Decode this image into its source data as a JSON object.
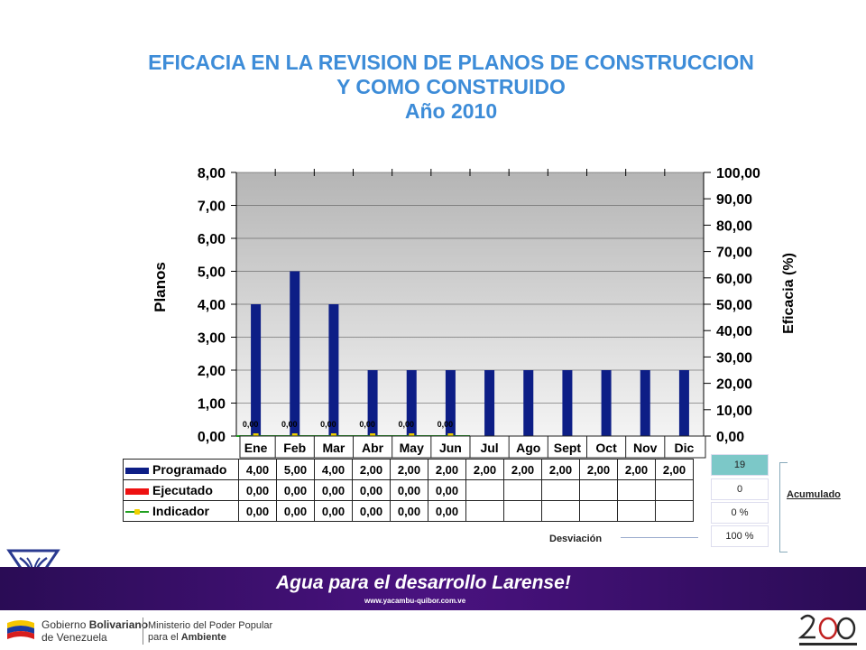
{
  "title": {
    "line1": "EFICACIA EN LA REVISION DE PLANOS DE CONSTRUCCION",
    "line2": "Y COMO CONSTRUIDO",
    "line3": "Año 2010"
  },
  "chart_data": {
    "type": "bar",
    "categories": [
      "Ene",
      "Feb",
      "Mar",
      "Abr",
      "May",
      "Jun",
      "Jul",
      "Ago",
      "Sept",
      "Oct",
      "Nov",
      "Dic"
    ],
    "series": [
      {
        "name": "Programado",
        "values": [
          4,
          5,
          4,
          2,
          2,
          2,
          2,
          2,
          2,
          2,
          2,
          2
        ],
        "color": "#0d1e86",
        "axis": "left"
      },
      {
        "name": "Ejecutado",
        "values": [
          0,
          0,
          0,
          0,
          0,
          0,
          null,
          null,
          null,
          null,
          null,
          null
        ],
        "color": "#ee1111",
        "axis": "left"
      },
      {
        "name": "Indicador",
        "values": [
          0,
          0,
          0,
          0,
          0,
          0,
          null,
          null,
          null,
          null,
          null,
          null
        ],
        "color": "#20a020",
        "axis": "right"
      }
    ],
    "bar_labels": [
      "0,00",
      "0,00",
      "0,00",
      "0,00",
      "0,00",
      "0,00"
    ],
    "ylabel": "Planos",
    "ylabel_right": "Eficacia (%)",
    "ylim": [
      0,
      8
    ],
    "yticks": [
      "0,00",
      "1,00",
      "2,00",
      "3,00",
      "4,00",
      "5,00",
      "6,00",
      "7,00",
      "8,00"
    ],
    "ylim_right": [
      0,
      100
    ],
    "yticks_right": [
      "0,00",
      "10,00",
      "20,00",
      "30,00",
      "40,00",
      "50,00",
      "60,00",
      "70,00",
      "80,00",
      "90,00",
      "100,00"
    ],
    "grid": true
  },
  "table": {
    "rows": [
      {
        "label": "Programado",
        "values": [
          "4,00",
          "5,00",
          "4,00",
          "2,00",
          "2,00",
          "2,00",
          "2,00",
          "2,00",
          "2,00",
          "2,00",
          "2,00",
          "2,00"
        ]
      },
      {
        "label": "Ejecutado",
        "values": [
          "0,00",
          "0,00",
          "0,00",
          "0,00",
          "0,00",
          "0,00",
          "",
          "",
          "",
          "",
          "",
          ""
        ]
      },
      {
        "label": "Indicador",
        "values": [
          "0,00",
          "0,00",
          "0,00",
          "0,00",
          "0,00",
          "0,00",
          "",
          "",
          "",
          "",
          "",
          ""
        ]
      }
    ]
  },
  "accumulated": {
    "values": [
      "19",
      "0",
      "0 %",
      "100  %"
    ],
    "label": "Acumulado",
    "deviation_label": "Desviación"
  },
  "banner": {
    "slogan": "Agua para el desarrollo Larense!",
    "website": "www.yacambu-quibor.com.ve"
  },
  "footer": {
    "gob_line1_a": "Gobierno ",
    "gob_line1_b": "Bolivariano",
    "gob_line2": "de Venezuela",
    "min_line1": "Ministerio del Poder Popular",
    "min_line2_a": "para el ",
    "min_line2_b": "Ambiente"
  },
  "colors": {
    "title": "#3d8cd8",
    "programado": "#0d1e86",
    "ejecutado": "#ee1111",
    "indicador": "#20a020",
    "banner": "#3a1070"
  }
}
